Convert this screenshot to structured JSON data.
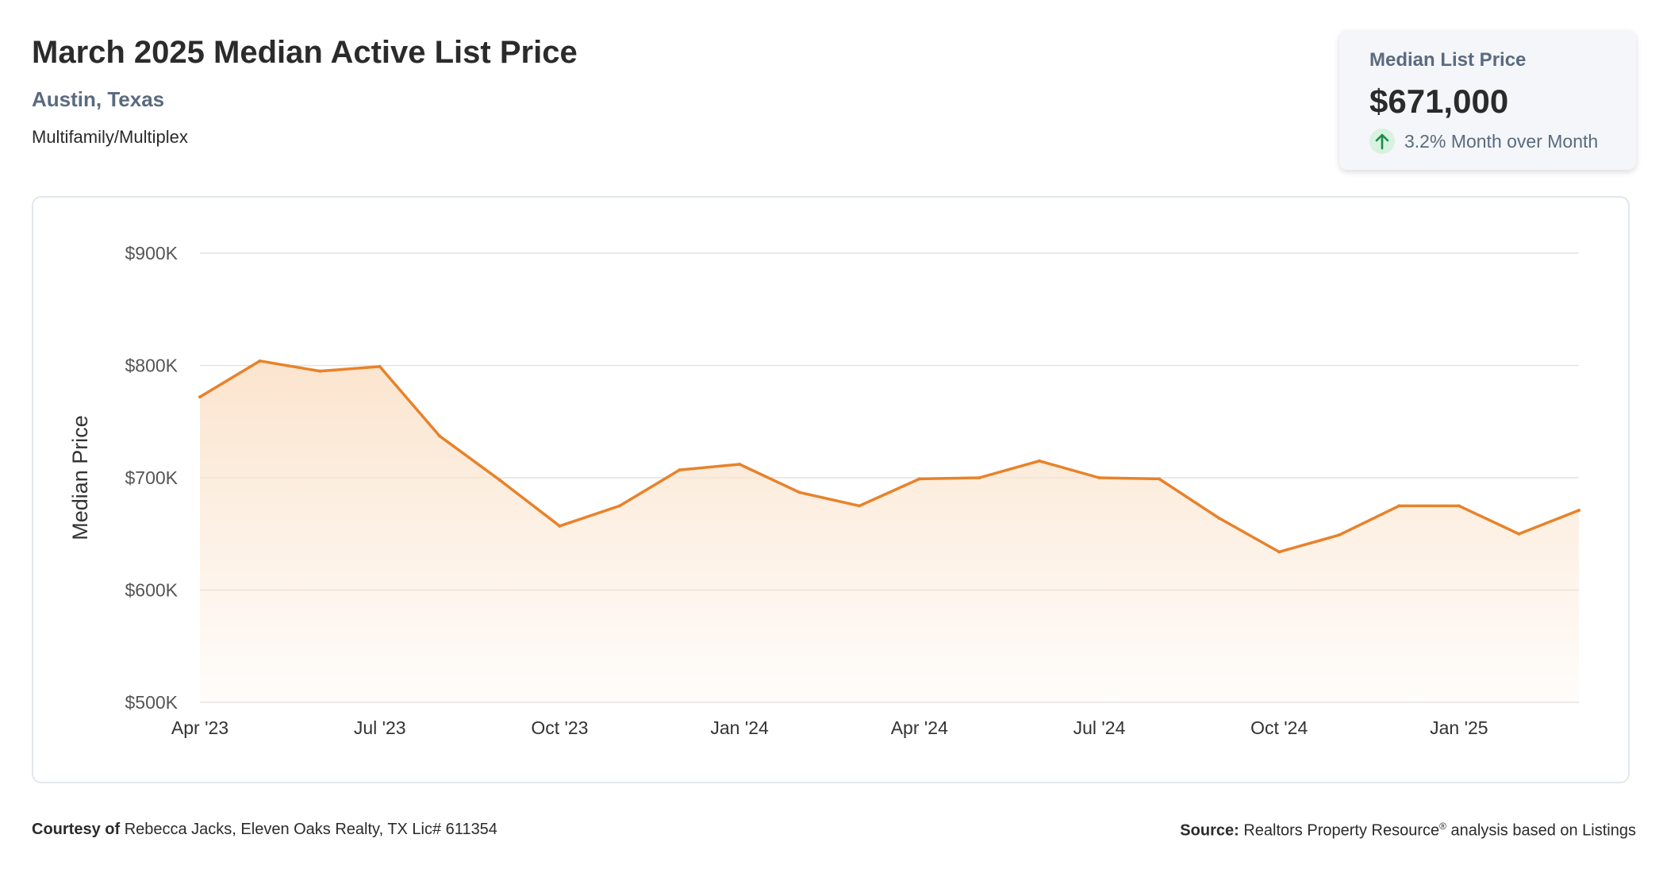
{
  "header": {
    "title": "March 2025 Median Active List Price",
    "location": "Austin, Texas",
    "property_type": "Multifamily/Multiplex"
  },
  "stat_card": {
    "label": "Median List Price",
    "value": "$671,000",
    "change": "3.2% Month over Month",
    "change_direction_icon": "arrow-up-icon"
  },
  "colors": {
    "line": "#e8822a",
    "area_top": "#fbe3cc",
    "grid": "#e3e3e3",
    "up_badge": "#d7f2df",
    "up_arrow": "#1f8a4c"
  },
  "chart_data": {
    "type": "area",
    "ylabel": "Median Price",
    "xlabel": "",
    "ylim": [
      500000,
      900000
    ],
    "yticks": [
      {
        "value": 900000,
        "label": "$900K"
      },
      {
        "value": 800000,
        "label": "$800K"
      },
      {
        "value": 700000,
        "label": "$700K"
      },
      {
        "value": 600000,
        "label": "$600K"
      },
      {
        "value": 500000,
        "label": "$500K"
      }
    ],
    "x": [
      "2023-04",
      "2023-05",
      "2023-06",
      "2023-07",
      "2023-08",
      "2023-09",
      "2023-10",
      "2023-11",
      "2023-12",
      "2024-01",
      "2024-02",
      "2024-03",
      "2024-04",
      "2024-05",
      "2024-06",
      "2024-07",
      "2024-08",
      "2024-09",
      "2024-10",
      "2024-11",
      "2024-12",
      "2025-01",
      "2025-02",
      "2025-03"
    ],
    "xticks": [
      {
        "index": 0,
        "label": "Apr '23"
      },
      {
        "index": 3,
        "label": "Jul '23"
      },
      {
        "index": 6,
        "label": "Oct '23"
      },
      {
        "index": 9,
        "label": "Jan '24"
      },
      {
        "index": 12,
        "label": "Apr '24"
      },
      {
        "index": 15,
        "label": "Jul '24"
      },
      {
        "index": 18,
        "label": "Oct '24"
      },
      {
        "index": 21,
        "label": "Jan '25"
      }
    ],
    "series": [
      {
        "values": [
          772000,
          804000,
          795000,
          799000,
          737000,
          698000,
          657000,
          675000,
          707000,
          712000,
          687000,
          675000,
          699000,
          700000,
          715000,
          700000,
          699000,
          664000,
          634000,
          649000,
          675000,
          675000,
          650000,
          671000
        ]
      }
    ],
    "grid": true,
    "legend": "none"
  },
  "footer": {
    "courtesy_label": "Courtesy of",
    "courtesy_text": "Rebecca Jacks, Eleven Oaks Realty, TX Lic# 611354",
    "source_label": "Source:",
    "source_text_a": "Realtors Property Resource",
    "source_reg": "®",
    "source_text_b": "analysis based on Listings"
  }
}
